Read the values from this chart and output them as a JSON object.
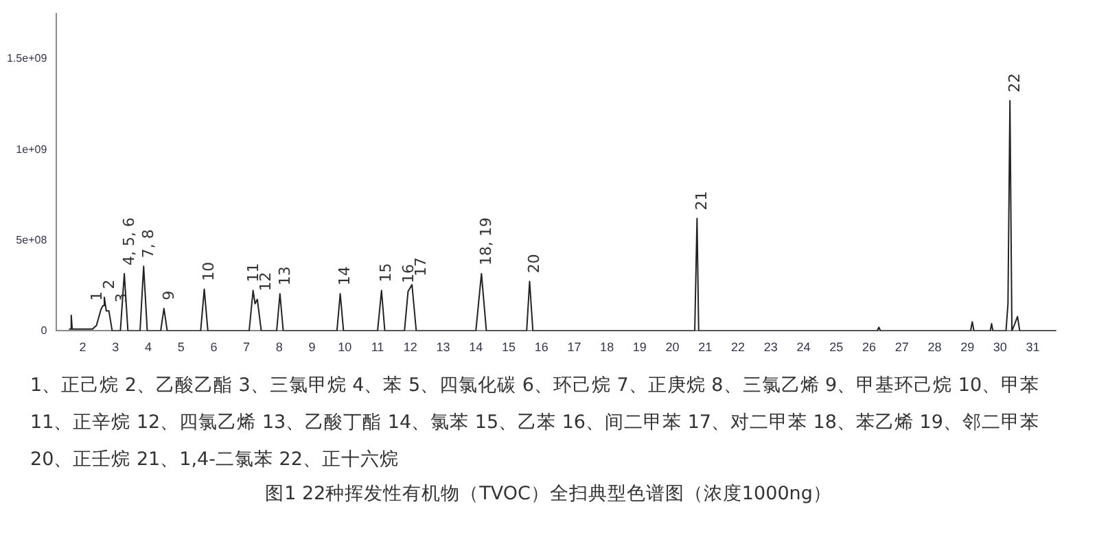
{
  "chart_data": {
    "type": "line",
    "title": "图1  22种挥发性有机物（TVOC）全扫典型色谱图（浓度1000ng）",
    "annotations": [
      {
        "text": "1",
        "x": 2.56,
        "y": 120000000
      },
      {
        "text": "2",
        "x": 2.66,
        "y": 185000000
      },
      {
        "text": "3",
        "x": 2.8,
        "y": 110000000
      },
      {
        "text": "4, 5, 6",
        "x": 3.27,
        "y": 316000000
      },
      {
        "text": "7, 8",
        "x": 3.86,
        "y": 356000000
      },
      {
        "text": "9",
        "x": 4.48,
        "y": 124000000
      },
      {
        "text": "10",
        "x": 5.71,
        "y": 230000000
      },
      {
        "text": "11",
        "x": 7.2,
        "y": 223000000
      },
      {
        "text": "12",
        "x": 7.33,
        "y": 174000000
      },
      {
        "text": "13",
        "x": 8.02,
        "y": 205000000
      },
      {
        "text": "14",
        "x": 9.86,
        "y": 205000000
      },
      {
        "text": "15",
        "x": 11.12,
        "y": 223000000
      },
      {
        "text": "16",
        "x": 11.93,
        "y": 217000000
      },
      {
        "text": "17",
        "x": 12.05,
        "y": 255000000
      },
      {
        "text": "18, 19",
        "x": 14.17,
        "y": 316000000
      },
      {
        "text": "20",
        "x": 15.64,
        "y": 273000000
      },
      {
        "text": "21",
        "x": 20.75,
        "y": 620000000
      },
      {
        "text": "22",
        "x": 30.3,
        "y": 1270000000
      },
      "1、正己烷  2、乙酸乙酯  3、三氯甲烷 4、苯  5、四氯化碳  6、环己烷  7、正庚烷  8、三氯乙烯  9、甲基环己烷 10、甲苯   11、正辛烷  12、四氯乙烯   13、乙酸丁酯  14、氯苯 15、乙苯 16、间二甲苯 17、对二甲苯 18、苯乙烯 19、邻二甲苯 20、正壬烷 21、1,4-二氯苯 22、正十六烷"
    ],
    "x": [
      1.6,
      1.63,
      1.65,
      1.68,
      1.75,
      2.3,
      2.42,
      2.56,
      2.62,
      2.66,
      2.72,
      2.8,
      2.9,
      3.15,
      3.27,
      3.38,
      3.75,
      3.86,
      3.97,
      4.38,
      4.48,
      4.58,
      5.6,
      5.71,
      5.82,
      7.08,
      7.2,
      7.26,
      7.33,
      7.45,
      7.92,
      8.02,
      8.12,
      9.76,
      9.86,
      9.96,
      11.0,
      11.12,
      11.22,
      11.82,
      11.93,
      12.05,
      12.18,
      14.0,
      14.17,
      14.32,
      15.55,
      15.64,
      15.74,
      20.68,
      20.75,
      20.8,
      26.25,
      26.3,
      26.35,
      29.1,
      29.15,
      29.2,
      29.7,
      29.74,
      29.78,
      30.18,
      30.24,
      30.3,
      30.36,
      30.45,
      30.53,
      30.6,
      31.7
    ],
    "series": [
      {
        "color": "#222222",
        "values": [
          10000000,
          10000000,
          86000000,
          10000000,
          10000000,
          10000000,
          30000000,
          120000000,
          140000000,
          185000000,
          110000000,
          110000000,
          0,
          0,
          316000000,
          0,
          0,
          356000000,
          0,
          0,
          124000000,
          0,
          0,
          230000000,
          0,
          0,
          223000000,
          150000000,
          174000000,
          0,
          0,
          205000000,
          0,
          0,
          205000000,
          0,
          0,
          223000000,
          0,
          0,
          217000000,
          255000000,
          0,
          0,
          316000000,
          0,
          0,
          273000000,
          0,
          0,
          620000000,
          0,
          0,
          20000000,
          0,
          0,
          50000000,
          0,
          0,
          40000000,
          0,
          0,
          150000000,
          1270000000,
          0,
          40000000,
          79000000,
          0,
          0
        ]
      }
    ],
    "xlim": [
      1.2,
      31.7
    ],
    "xticks": [
      2,
      3,
      4,
      5,
      6,
      7,
      8,
      9,
      10,
      11,
      12,
      13,
      14,
      15,
      16,
      17,
      18,
      19,
      20,
      21,
      22,
      23,
      24,
      25,
      26,
      27,
      28,
      29,
      30,
      31
    ],
    "ylim": [
      0,
      1750000000
    ],
    "yticks": [
      0,
      {
        "value": 500000000,
        "label": "5e+08"
      },
      {
        "value": 1000000000,
        "label": "1e+09"
      },
      {
        "value": 1500000000,
        "label": "1.5e+09"
      }
    ],
    "grid": false,
    "legend": false,
    "marker": "none",
    "line_style": "solid"
  }
}
